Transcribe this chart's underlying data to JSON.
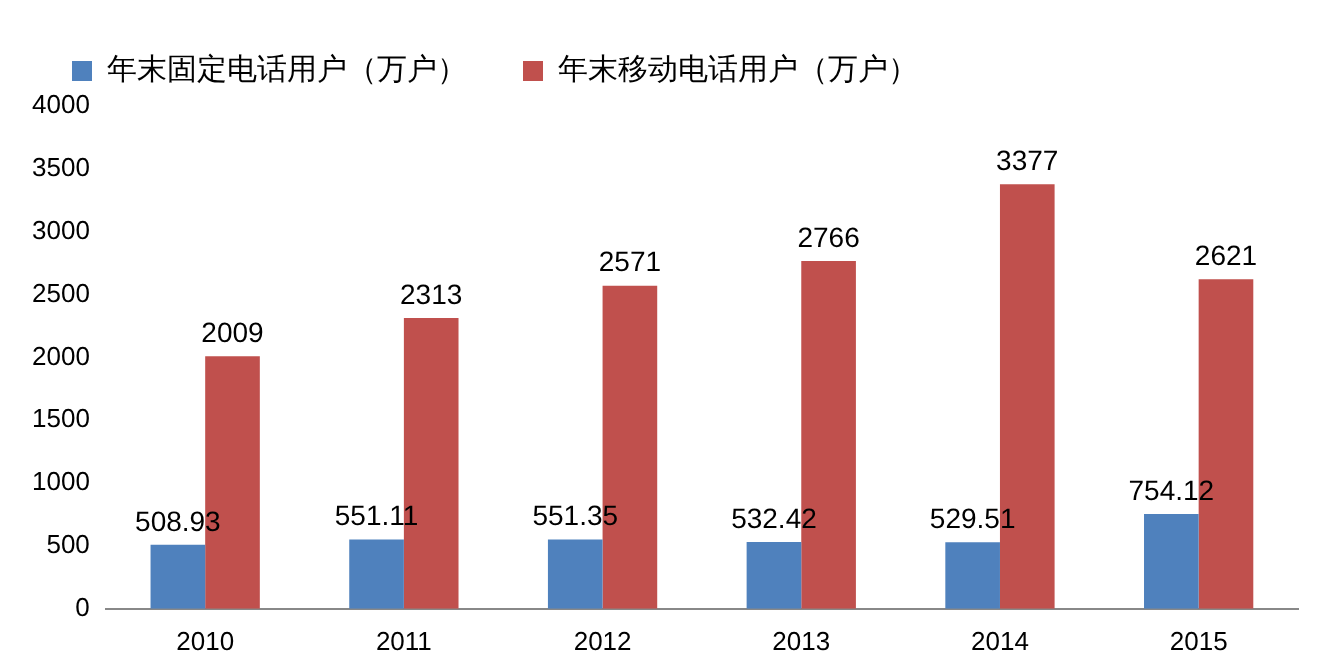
{
  "chart_data": {
    "type": "bar",
    "categories": [
      "2010",
      "2011",
      "2012",
      "2013",
      "2014",
      "2015"
    ],
    "series": [
      {
        "name": "年末固定电话用户（万户）",
        "color": "#4f81bd",
        "values": [
          508.93,
          551.11,
          551.35,
          532.42,
          529.51,
          754.12
        ]
      },
      {
        "name": "年末移动电话用户（万户）",
        "color": "#c0504d",
        "values": [
          2009,
          2313,
          2571,
          2766,
          3377,
          2621
        ]
      }
    ],
    "ylim": [
      0,
      4000
    ],
    "yticks": [
      0,
      500,
      1000,
      1500,
      2000,
      2500,
      3000,
      3500,
      4000
    ],
    "grid": false,
    "legend": "top left",
    "data_labels": true
  }
}
